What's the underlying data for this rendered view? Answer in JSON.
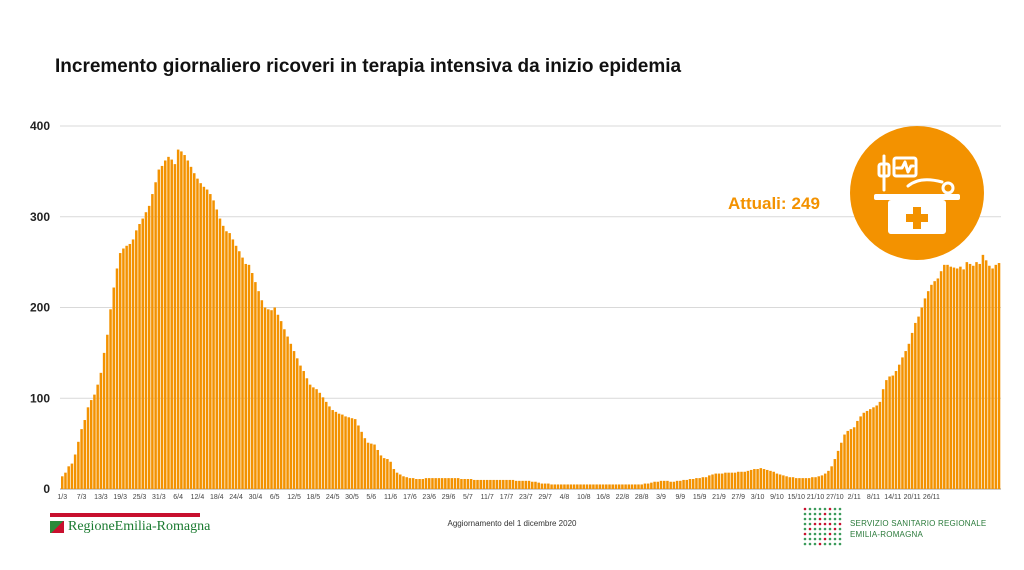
{
  "header": {
    "title": "Incremento giornaliero ricoveri in terapia intensiva da inizio epidemia"
  },
  "annotation": {
    "label": "Attuali:",
    "value": "249",
    "icon": "intensive-care-bed-icon"
  },
  "footer": {
    "logo_text": "RegioneEmilia-Romagna",
    "update_text": "Aggiornamento del 1 dicembre 2020",
    "ssr_line1": "SERVIZIO SANITARIO REGIONALE",
    "ssr_line2": "EMILIA-ROMAGNA"
  },
  "colors": {
    "bar": "#f39200",
    "grid": "#d9d9d9",
    "logo_green": "#1a7a30",
    "logo_red": "#c8102e"
  },
  "chart_data": {
    "type": "bar",
    "title": "Incremento giornaliero ricoveri in terapia intensiva da inizio epidemia",
    "xlabel": "",
    "ylabel": "",
    "ylim": [
      0,
      400
    ],
    "yticks": [
      0,
      100,
      200,
      300,
      400
    ],
    "grid": true,
    "start_date": "2020-03-01",
    "end_date": "2020-12-01",
    "tick_labels": [
      "1/3",
      "7/3",
      "13/3",
      "19/3",
      "25/3",
      "31/3",
      "6/4",
      "12/4",
      "18/4",
      "24/4",
      "30/4",
      "6/5",
      "12/5",
      "18/5",
      "24/5",
      "30/5",
      "5/6",
      "11/6",
      "17/6",
      "23/6",
      "29/6",
      "5/7",
      "11/7",
      "17/7",
      "23/7",
      "29/7",
      "4/8",
      "10/8",
      "16/8",
      "22/8",
      "28/8",
      "3/9",
      "9/9",
      "15/9",
      "21/9",
      "27/9",
      "3/10",
      "9/10",
      "15/10",
      "21/10",
      "27/10",
      "2/11",
      "8/11",
      "14/11",
      "20/11",
      "26/11"
    ],
    "series": [
      {
        "values": [
          14,
          18,
          25,
          28,
          38,
          52,
          66,
          76,
          90,
          98,
          104,
          115,
          128,
          150,
          170,
          198,
          222,
          243,
          260,
          265,
          268,
          270,
          275,
          285,
          292,
          298,
          305,
          312,
          325,
          338,
          352,
          356,
          362,
          366,
          363,
          358,
          374,
          372,
          368,
          362,
          355,
          348,
          342,
          337,
          333,
          330,
          325,
          318,
          308,
          298,
          290,
          284,
          282,
          275,
          268,
          262,
          255,
          248,
          247,
          238,
          228,
          218,
          208,
          200,
          198,
          197,
          200,
          192,
          185,
          176,
          168,
          160,
          152,
          144,
          136,
          130,
          122,
          115,
          112,
          110,
          106,
          101,
          96,
          91,
          87,
          85,
          83,
          82,
          80,
          79,
          78,
          77,
          70,
          63,
          56,
          51,
          50,
          49,
          43,
          37,
          34,
          33,
          30,
          22,
          18,
          16,
          14,
          13,
          12,
          12,
          11,
          11,
          11,
          12,
          12,
          12,
          12,
          12,
          12,
          12,
          12,
          12,
          12,
          12,
          11,
          11,
          11,
          11,
          10,
          10,
          10,
          10,
          10,
          10,
          10,
          10,
          10,
          10,
          10,
          10,
          10,
          9,
          9,
          9,
          9,
          9,
          8,
          8,
          7,
          6,
          6,
          6,
          5,
          5,
          5,
          5,
          5,
          5,
          5,
          5,
          5,
          5,
          5,
          5,
          5,
          5,
          5,
          5,
          5,
          5,
          5,
          5,
          5,
          5,
          5,
          5,
          5,
          5,
          5,
          5,
          5,
          6,
          6,
          7,
          8,
          8,
          9,
          9,
          9,
          8,
          8,
          9,
          9,
          10,
          10,
          11,
          11,
          12,
          12,
          13,
          13,
          15,
          16,
          17,
          17,
          17,
          18,
          18,
          18,
          18,
          19,
          19,
          19,
          20,
          21,
          22,
          22,
          23,
          22,
          21,
          20,
          19,
          17,
          16,
          15,
          14,
          13,
          13,
          12,
          12,
          12,
          12,
          12,
          13,
          13,
          14,
          15,
          17,
          20,
          25,
          33,
          42,
          51,
          60,
          64,
          66,
          68,
          75,
          80,
          84,
          86,
          88,
          90,
          92,
          96,
          110,
          120,
          124,
          125,
          130,
          137,
          145,
          152,
          160,
          172,
          183,
          190,
          200,
          210,
          218,
          225,
          229,
          232,
          240,
          247,
          247,
          245,
          244,
          243,
          245,
          242,
          250,
          248,
          246,
          250,
          248,
          258,
          252,
          246,
          243,
          247,
          249
        ]
      }
    ]
  }
}
